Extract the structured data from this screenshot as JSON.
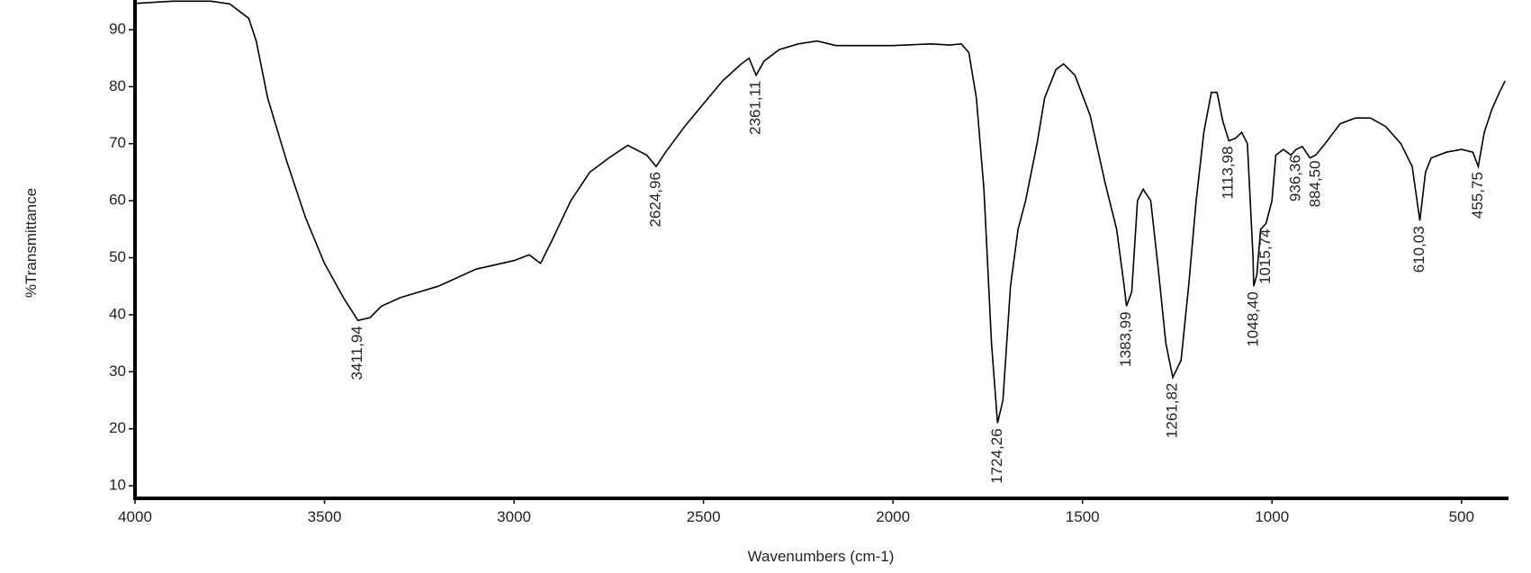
{
  "chart_data": {
    "type": "line",
    "x_label": "Wavenumbers (cm-1)",
    "y_label": "%Transmittance",
    "color": "#000000",
    "xlim": [
      4000,
      376
    ],
    "ylim": [
      7.8,
      95.2
    ],
    "xticks": [
      4000,
      3500,
      3000,
      2500,
      2000,
      1500,
      1000,
      500
    ],
    "yticks": [
      10,
      20,
      30,
      40,
      50,
      60,
      70,
      80,
      90
    ],
    "x": [
      4000,
      3900,
      3800,
      3750,
      3700,
      3680,
      3650,
      3600,
      3550,
      3500,
      3450,
      3411.94,
      3380,
      3350,
      3300,
      3200,
      3100,
      3000,
      2960,
      2930,
      2900,
      2850,
      2800,
      2750,
      2700,
      2650,
      2624.96,
      2600,
      2550,
      2500,
      2450,
      2400,
      2380,
      2361.11,
      2340,
      2300,
      2250,
      2200,
      2150,
      2000,
      1900,
      1850,
      1820,
      1800,
      1780,
      1760,
      1740,
      1724.26,
      1710,
      1690,
      1670,
      1650,
      1620,
      1600,
      1570,
      1550,
      1520,
      1480,
      1440,
      1410,
      1390,
      1383.99,
      1370,
      1355,
      1340,
      1320,
      1300,
      1280,
      1261.82,
      1240,
      1220,
      1200,
      1180,
      1160,
      1145,
      1130,
      1113.98,
      1095,
      1080,
      1065,
      1050,
      1048.4,
      1040,
      1030,
      1015.74,
      1000,
      990,
      970,
      950,
      936.36,
      920,
      900,
      884.5,
      860,
      820,
      780,
      740,
      700,
      660,
      630,
      610.03,
      595,
      580,
      540,
      500,
      470,
      455.75,
      440,
      420,
      400,
      385
    ],
    "values": [
      94.6,
      95,
      95,
      94.5,
      92,
      88,
      78,
      67,
      57,
      49,
      43,
      39,
      39.5,
      41.5,
      43,
      45,
      48,
      49.5,
      50.5,
      49,
      53,
      60,
      65,
      67.5,
      69.7,
      68,
      66,
      68.5,
      73,
      77,
      81,
      84,
      85,
      82,
      84.5,
      86.5,
      87.5,
      88,
      87.2,
      87.2,
      87.5,
      87.3,
      87.5,
      86,
      78,
      62,
      35,
      21,
      25,
      45,
      55,
      60,
      70,
      78,
      83,
      84,
      82,
      75,
      63,
      55,
      45,
      41.5,
      44,
      60,
      62,
      60,
      48,
      35,
      29,
      32,
      45,
      60,
      72,
      79,
      79,
      74,
      70.5,
      71,
      72,
      70,
      50,
      45,
      47,
      55,
      56,
      60,
      68,
      69,
      68,
      69,
      69.5,
      67.5,
      68,
      70,
      73.5,
      74.5,
      74.5,
      73,
      70,
      66,
      56.5,
      65,
      67.5,
      68.5,
      69,
      68.5,
      66,
      72,
      76,
      79,
      81
    ],
    "annotations": [
      {
        "value": 3411.94,
        "label": "3411,94"
      },
      {
        "value": 2624.96,
        "label": "2624,96"
      },
      {
        "value": 2361.11,
        "label": "2361,11"
      },
      {
        "value": 1724.26,
        "label": "1724,26"
      },
      {
        "value": 1383.99,
        "label": "1383,99"
      },
      {
        "value": 1261.82,
        "label": "1261,82"
      },
      {
        "value": 1113.98,
        "label": "1113,98"
      },
      {
        "value": 1048.4,
        "label": "1048,40"
      },
      {
        "value": 1015.74,
        "label": "1015,74"
      },
      {
        "value": 936.36,
        "label": "936,36"
      },
      {
        "value": 884.5,
        "label": "884,50"
      },
      {
        "value": 610.03,
        "label": "610,03"
      },
      {
        "value": 455.75,
        "label": "455,75"
      }
    ]
  }
}
